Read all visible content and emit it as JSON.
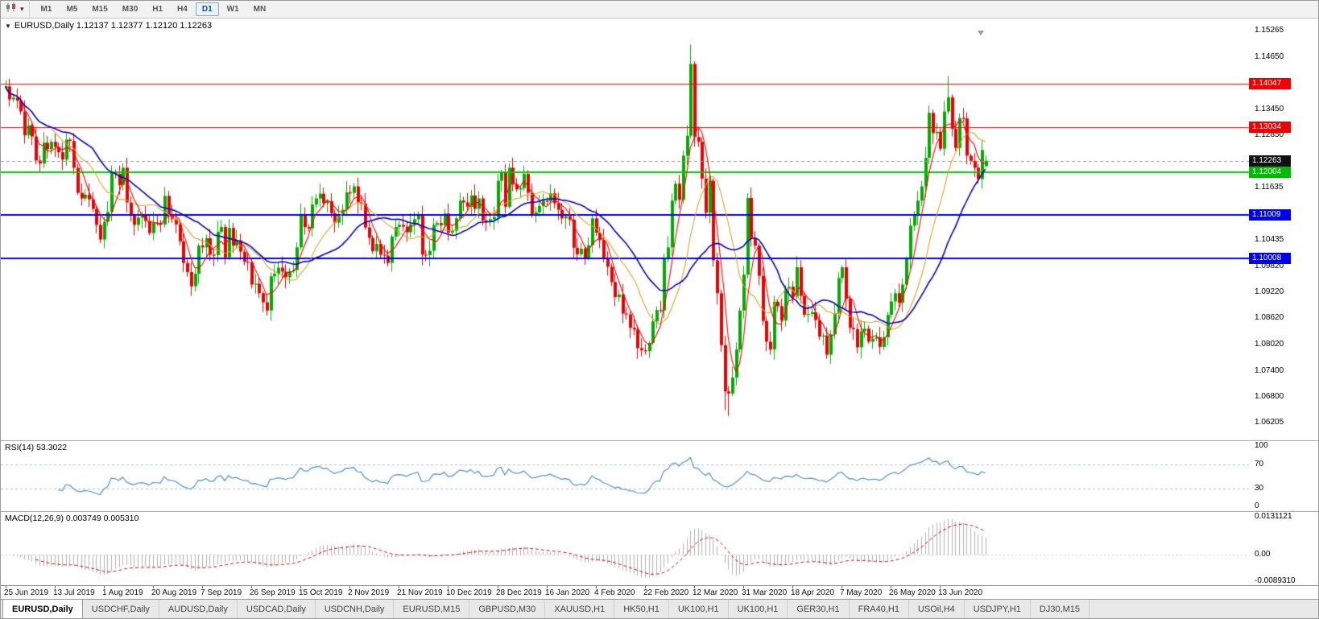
{
  "toolbar": {
    "timeframes": [
      "M1",
      "M5",
      "M15",
      "M30",
      "H1",
      "H4",
      "D1",
      "W1",
      "MN"
    ],
    "active": "D1"
  },
  "price_pane": {
    "header": "EURUSD,Daily 1.12137 1.12377 1.12120 1.12263",
    "scale_ticks": [
      "1.15265",
      "1.14650",
      "1.13450",
      "1.12850",
      "1.11635",
      "1.10435",
      "1.09820",
      "1.09220",
      "1.08620",
      "1.08020",
      "1.07400",
      "1.06800",
      "1.06205"
    ],
    "badges": [
      {
        "label": "1.14047",
        "color": "#F20000"
      },
      {
        "label": "1.13034",
        "color": "#F20000"
      },
      {
        "label": "1.12263",
        "color": "#111111"
      },
      {
        "label": "1.12004",
        "color": "#00BB00"
      },
      {
        "label": "1.11009",
        "color": "#0000F0"
      },
      {
        "label": "1.10008",
        "color": "#0000F0"
      }
    ]
  },
  "rsi_pane": {
    "header": "RSI(14) 53.3022",
    "scale_labels": [
      "100",
      "70",
      "30",
      "0"
    ]
  },
  "macd_pane": {
    "header": "MACD(12,26,9) 0.003749 0.005310",
    "scale_labels": [
      "0.0131121",
      "0.00",
      "-0.0089310"
    ]
  },
  "x_axis": {
    "dates": [
      "25 Jun 2019",
      "13 Jul 2019",
      "1 Aug 2019",
      "20 Aug 2019",
      "7 Sep 2019",
      "26 Sep 2019",
      "15 Oct 2019",
      "2 Nov 2019",
      "21 Nov 2019",
      "10 Dec 2019",
      "28 Dec 2019",
      "16 Jan 2020",
      "4 Feb 2020",
      "22 Feb 2020",
      "12 Mar 2020",
      "31 Mar 2020",
      "18 Apr 2020",
      "7 May 2020",
      "26 May 2020",
      "13 Jun 2020"
    ]
  },
  "tabs": {
    "active_index": 0,
    "items": [
      "EURUSD,Daily",
      "USDCHF,Daily",
      "AUDUSD,Daily",
      "USDCAD,Daily",
      "USDCNH,Daily",
      "EURUSD,M15",
      "GBPUSD,M30",
      "XAUUSD,H1",
      "HK50,H1",
      "UK100,H1",
      "UK100,H1",
      "GER30,H1",
      "FRA40,H1",
      "USOil,H4",
      "USDJPY,H1",
      "DJ30,M15"
    ]
  },
  "colors": {
    "up": "#00AE00",
    "down": "#EE0000",
    "ma_fast": "#FF0000",
    "ma_mid": "#DBA320",
    "ma_slow": "#0000C8",
    "rsi_line": "#4A90D2",
    "rsi_level": "#A8BED4",
    "macd_hist": "#B0B0B0",
    "macd_signal": "#E00000",
    "current_price_line": "#999999"
  },
  "chart_data": {
    "type": "candlestick",
    "symbol": "EURUSD",
    "timeframe": "Daily",
    "last_ohlc": {
      "open": 1.12137,
      "high": 1.12377,
      "low": 1.1212,
      "close": 1.12263
    },
    "price_range": {
      "min": 1.058,
      "max": 1.1555
    },
    "first_open": 1.1395,
    "closes": [
      1.1398,
      1.1368,
      1.1372,
      1.1365,
      1.134,
      1.1285,
      1.1308,
      1.1282,
      1.1227,
      1.122,
      1.1268,
      1.1253,
      1.127,
      1.1258,
      1.1246,
      1.1229,
      1.1275,
      1.1272,
      1.121,
      1.1152,
      1.1139,
      1.1148,
      1.1137,
      1.1115,
      1.1078,
      1.1044,
      1.1085,
      1.1108,
      1.12,
      1.1196,
      1.117,
      1.121,
      1.113,
      1.1099,
      1.1078,
      1.1095,
      1.11,
      1.1087,
      1.1059,
      1.1083,
      1.1082,
      1.1079,
      1.1145,
      1.1101,
      1.1091,
      1.1079,
      1.104,
      1.099,
      1.0969,
      1.0936,
      1.0965,
      1.103,
      1.1026,
      1.1047,
      1.1009,
      1.1008,
      1.1062,
      1.1073,
      1.1003,
      1.1071,
      1.103,
      1.1042,
      1.1016,
      1.0993,
      1.0992,
      1.094,
      1.0942,
      1.092,
      1.0899,
      1.088,
      1.0959,
      1.0965,
      1.0979,
      1.097,
      1.0957,
      1.0971,
      1.0974,
      1.1026,
      1.1103,
      1.1073,
      1.107,
      1.1125,
      1.1139,
      1.115,
      1.1128,
      1.1133,
      1.1105,
      1.1083,
      1.1101,
      1.1113,
      1.1153,
      1.1152,
      1.1167,
      1.113,
      1.1127,
      1.1072,
      1.1048,
      1.1017,
      1.1034,
      1.1009,
      1.1007,
      1.099,
      1.1051,
      1.1073,
      1.1078,
      1.1074,
      1.1061,
      1.1079,
      1.1091,
      1.1102,
      1.1009,
      1.1008,
      1.1018,
      1.1078,
      1.1082,
      1.1077,
      1.1104,
      1.106,
      1.1064,
      1.1093,
      1.1134,
      1.113,
      1.112,
      1.1146,
      1.1115,
      1.1139,
      1.1088,
      1.1087,
      1.1091,
      1.1096,
      1.118,
      1.1199,
      1.112,
      1.121,
      1.1172,
      1.116,
      1.1163,
      1.1196,
      1.1152,
      1.1103,
      1.1107,
      1.1122,
      1.1134,
      1.1133,
      1.1151,
      1.1128,
      1.1113,
      1.1093,
      1.1098,
      1.109,
      1.1025,
      1.101,
      1.1023,
      1.1002,
      1.1031,
      1.1093,
      1.106,
      1.1043,
      1.1,
      1.0981,
      1.0946,
      1.0911,
      1.0917,
      1.0873,
      1.0871,
      1.084,
      1.0836,
      1.0793,
      1.0788,
      1.0786,
      1.0805,
      1.0855,
      1.0881,
      1.088,
      1.0999,
      1.1026,
      1.1134,
      1.1173,
      1.1136,
      1.1238,
      1.1284,
      1.145,
      1.1281,
      1.127,
      1.1185,
      1.1106,
      1.118,
      1.0996,
      1.092,
      1.08,
      1.0693,
      1.0688,
      1.0725,
      1.079,
      1.088,
      1.0963,
      1.114,
      1.1048,
      1.103,
      1.096,
      1.0856,
      1.0808,
      1.079,
      1.09,
      1.089,
      1.0857,
      1.093,
      1.0935,
      1.0912,
      1.098,
      1.0914,
      1.087,
      1.0872,
      1.0876,
      1.0858,
      1.082,
      1.0822,
      1.0778,
      1.0825,
      1.0873,
      1.0955,
      1.098,
      1.0907,
      1.084,
      1.0837,
      1.0795,
      1.0832,
      1.0838,
      1.0808,
      1.0815,
      1.0818,
      1.0796,
      1.0818,
      1.087,
      1.0901,
      1.092,
      1.0898,
      1.094,
      1.0999,
      1.1076,
      1.1101,
      1.1134,
      1.1167,
      1.1233,
      1.1337,
      1.129,
      1.1293,
      1.1254,
      1.134,
      1.1373,
      1.13,
      1.1256,
      1.1325,
      1.1324,
      1.1238,
      1.1226,
      1.121,
      1.1184,
      1.1251,
      1.12263
    ],
    "overrides": {
      "0": {
        "h": 1.1412
      },
      "169": {
        "l": 1.0778
      },
      "181": {
        "h": 1.1495,
        "l": 1.1278
      },
      "190": {
        "l": 1.065
      },
      "191": {
        "l": 1.0636
      },
      "249": {
        "h": 1.1422
      },
      "259": {
        "o": 1.12137,
        "h": 1.12377,
        "l": 1.1212
      }
    },
    "hlines": [
      {
        "price": 1.14047,
        "color": "#FF0000",
        "width": 1
      },
      {
        "price": 1.13034,
        "color": "#FF0000",
        "width": 1
      },
      {
        "price": 1.12004,
        "color": "#00CC00",
        "width": 2
      },
      {
        "price": 1.11009,
        "color": "#0000F0",
        "width": 2
      },
      {
        "price": 1.10008,
        "color": "#0000F0",
        "width": 2
      },
      {
        "price": 1.12263,
        "color": "#999999",
        "width": 1,
        "dash": true
      }
    ],
    "moving_averages": [
      {
        "period": 13,
        "color": "#DBA320",
        "lw": 1.1
      },
      {
        "period": 5,
        "color": "#FF0000",
        "lw": 1.1
      },
      {
        "period": 24,
        "color": "#0000C8",
        "lw": 1.6
      }
    ],
    "rsi": {
      "period": 14,
      "value": 53.3022,
      "levels": [
        70,
        30
      ]
    },
    "macd": {
      "fast": 12,
      "slow": 26,
      "signal": 9,
      "macd_value": 0.003749,
      "signal_value": 0.00531,
      "range": {
        "max": 0.0131121,
        "min": -0.008931
      }
    }
  }
}
